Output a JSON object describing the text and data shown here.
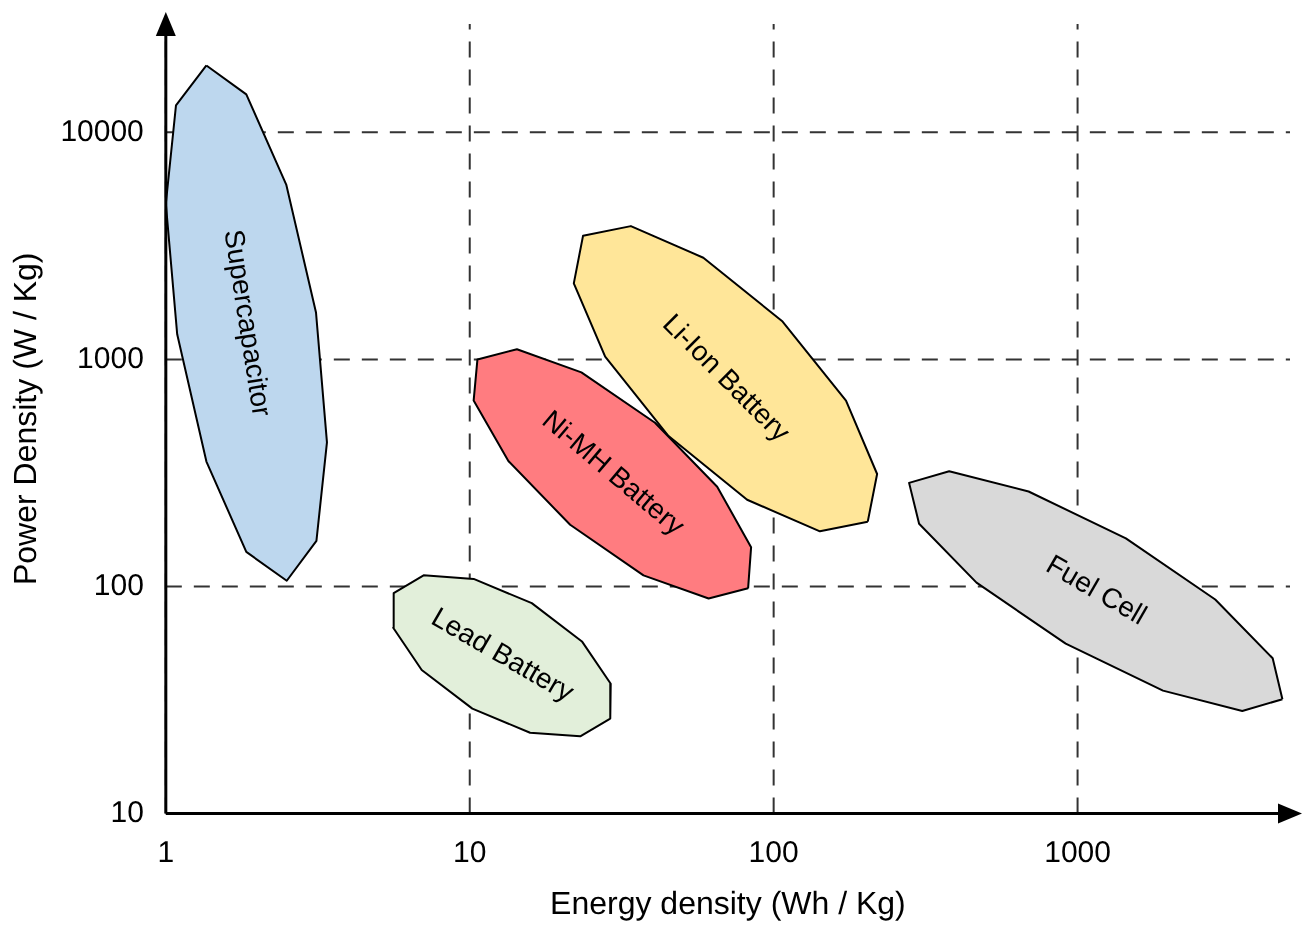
{
  "chart_data": {
    "type": "area",
    "xlabel": "Energy density (Wh / Kg)",
    "ylabel": "Power Density (W / Kg)",
    "log": "xy",
    "grid": true,
    "legend": false,
    "xlim": [
      1,
      5000
    ],
    "ylim": [
      10,
      30000
    ],
    "xticks": [
      1,
      10,
      100,
      1000
    ],
    "yticks": [
      10,
      100,
      1000,
      10000
    ],
    "series": [
      {
        "name": "Supercapacitor",
        "color": "#bdd7ee",
        "x": [
          1.36,
          1.84,
          2.49,
          3.12,
          3.39,
          3.13,
          2.5,
          1.84,
          1.36,
          1.09,
          1.0,
          1.08,
          1.36
        ],
        "values": [
          19700,
          14700,
          5890,
          1610,
          431,
          159,
          106,
          142,
          355,
          1290,
          4850,
          13150,
          19700
        ]
      },
      {
        "name": "Lead Battery",
        "color": "#e2efda",
        "x": [
          29.0,
          23.1,
          15.8,
          10.2,
          6.95,
          5.6,
          5.62,
          7.05,
          10.3,
          16.0,
          23.4,
          29.1,
          29.0
        ],
        "values": [
          26.2,
          21.9,
          22.7,
          29.0,
          42.9,
          65.8,
          93.5,
          112,
          108,
          84.5,
          57.3,
          37.3,
          26.2
        ]
      },
      {
        "name": "Ni-MH Battery",
        "color": "#ff7c80",
        "x": [
          82.4,
          61.1,
          37.3,
          21.4,
          13.4,
          10.3,
          10.6,
          14.3,
          23.3,
          40.7,
          65.2,
          84.3,
          82.4
        ],
        "values": [
          98.2,
          88.5,
          112,
          187,
          357,
          659,
          1000,
          1109,
          877,
          526,
          275,
          149,
          98.2
        ]
      },
      {
        "name": "Li-Ion Battery",
        "color": "#ffe699",
        "x": [
          204,
          142,
          81.8,
          45.1,
          27.9,
          22.0,
          23.6,
          33.9,
          58.7,
          107,
          173,
          219,
          204
        ],
        "values": [
          193,
          175,
          241,
          460,
          1028,
          2163,
          3508,
          3864,
          2805,
          1469,
          658,
          313,
          193
        ]
      },
      {
        "name": "Fuel Cell",
        "color": "#d9d9d9",
        "x": [
          4721,
          3483,
          1910,
          914,
          465,
          301,
          279,
          378,
          690,
          1442,
          2838,
          4385,
          4721
        ],
        "values": [
          31.9,
          28.3,
          34.8,
          56.0,
          104,
          189,
          286,
          322,
          262,
          163,
          87.7,
          48.3,
          31.9
        ]
      }
    ]
  }
}
